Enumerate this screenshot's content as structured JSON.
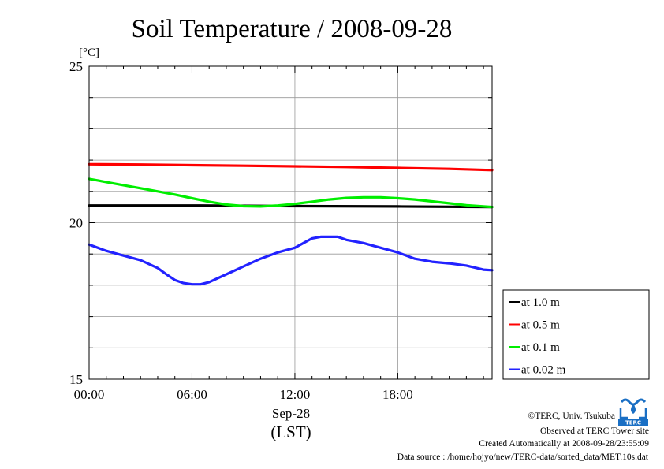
{
  "chart_data": {
    "type": "line",
    "title": "Soil Temperature / 2008-09-28",
    "ylabel": "[°C]",
    "xlabel_date": "Sep-28",
    "xlabel_tz": "(LST)",
    "ylim": [
      15,
      25
    ],
    "yticks": [
      "15",
      "20",
      "25"
    ],
    "xlim": [
      0,
      23.5
    ],
    "xticks": [
      {
        "value": 0,
        "label": "00:00"
      },
      {
        "value": 6,
        "label": "06:00"
      },
      {
        "value": 12,
        "label": "12:00"
      },
      {
        "value": 18,
        "label": "18:00"
      }
    ],
    "grid": true,
    "legend_position": "right",
    "series": [
      {
        "name": "at 1.0 m",
        "color": "#000000",
        "x": [
          0,
          6,
          12,
          18,
          23.5
        ],
        "y": [
          20.55,
          20.55,
          20.53,
          20.52,
          20.5
        ]
      },
      {
        "name": "at 0.5 m",
        "color": "#ff0000",
        "x": [
          0,
          3,
          6,
          9,
          12,
          15,
          18,
          21,
          23.5
        ],
        "y": [
          21.87,
          21.86,
          21.84,
          21.82,
          21.8,
          21.78,
          21.75,
          21.72,
          21.68
        ]
      },
      {
        "name": "at 0.1 m",
        "color": "#00ee00",
        "x": [
          0,
          1,
          2,
          3,
          4,
          5,
          6,
          7,
          8,
          9,
          10,
          11,
          12,
          13,
          14,
          15,
          16,
          17,
          18,
          19,
          20,
          21,
          22,
          23,
          23.5
        ],
        "y": [
          21.4,
          21.3,
          21.2,
          21.1,
          21.0,
          20.9,
          20.78,
          20.67,
          20.58,
          20.53,
          20.52,
          20.55,
          20.6,
          20.67,
          20.74,
          20.79,
          20.81,
          20.81,
          20.78,
          20.74,
          20.68,
          20.62,
          20.56,
          20.52,
          20.5
        ]
      },
      {
        "name": "at 0.02 m",
        "color": "#2222ff",
        "x": [
          0,
          1,
          2,
          3,
          4,
          4.5,
          5,
          5.5,
          6,
          6.5,
          7,
          8,
          9,
          10,
          11,
          12,
          12.5,
          13,
          13.5,
          14,
          14.5,
          15,
          16,
          17,
          18,
          19,
          20,
          21,
          22,
          23,
          23.5
        ],
        "y": [
          19.3,
          19.1,
          18.95,
          18.8,
          18.55,
          18.35,
          18.17,
          18.07,
          18.03,
          18.03,
          18.1,
          18.35,
          18.6,
          18.85,
          19.05,
          19.2,
          19.35,
          19.5,
          19.55,
          19.55,
          19.55,
          19.45,
          19.35,
          19.2,
          19.05,
          18.85,
          18.75,
          18.7,
          18.63,
          18.5,
          18.48
        ]
      }
    ]
  },
  "footer": {
    "copyright": "©TERC, Univ. Tsukuba",
    "observed": "Observed at TERC Tower site",
    "created": "Created Automatically at 2008-09-28/23:55:09",
    "source": "Data source : /home/hojyo/new/TERC-data/sorted_data/MET.10s.dat",
    "logo_text": "TERC",
    "logo_color": "#1a6fc4"
  }
}
